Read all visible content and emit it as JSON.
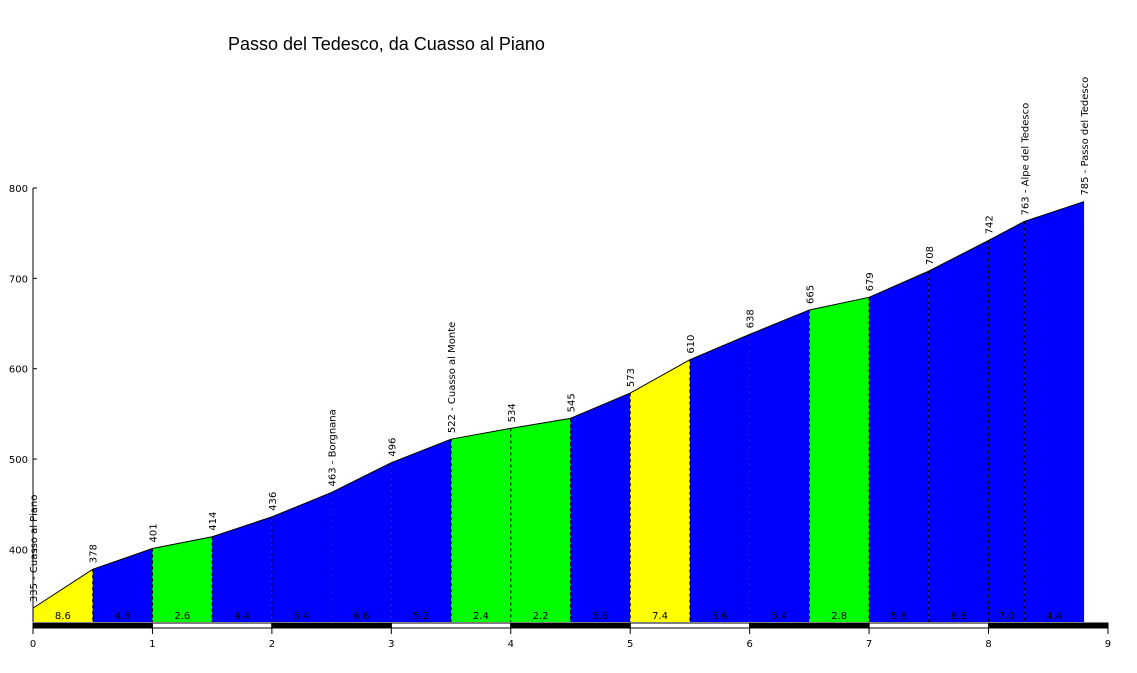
{
  "chart_data": {
    "type": "area",
    "title": "Passo del Tedesco, da Cuasso al Piano",
    "xlabel": "",
    "ylabel": "",
    "xlim": [
      0,
      9
    ],
    "ylim": [
      320,
      800
    ],
    "x_ticks": [
      "0",
      "1",
      "2",
      "3",
      "4",
      "5",
      "6",
      "7",
      "8",
      "9"
    ],
    "y_ticks": [
      "400",
      "500",
      "600",
      "700",
      "800"
    ],
    "points": [
      {
        "x": 0.0,
        "y": 335,
        "label": "335 - Cuasso al Piano"
      },
      {
        "x": 0.5,
        "y": 378,
        "label": "378"
      },
      {
        "x": 1.0,
        "y": 401,
        "label": "401"
      },
      {
        "x": 1.5,
        "y": 414,
        "label": "414"
      },
      {
        "x": 2.0,
        "y": 436,
        "label": "436"
      },
      {
        "x": 2.5,
        "y": 463,
        "label": "463 - Borgnana"
      },
      {
        "x": 3.0,
        "y": 496,
        "label": "496"
      },
      {
        "x": 3.5,
        "y": 522,
        "label": "522 - Cuasso al Monte"
      },
      {
        "x": 4.0,
        "y": 534,
        "label": "534"
      },
      {
        "x": 4.5,
        "y": 545,
        "label": "545"
      },
      {
        "x": 5.0,
        "y": 573,
        "label": "573"
      },
      {
        "x": 5.5,
        "y": 610,
        "label": "610"
      },
      {
        "x": 6.0,
        "y": 638,
        "label": "638"
      },
      {
        "x": 6.5,
        "y": 665,
        "label": "665"
      },
      {
        "x": 7.0,
        "y": 679,
        "label": "679"
      },
      {
        "x": 7.5,
        "y": 708,
        "label": "708"
      },
      {
        "x": 8.0,
        "y": 742,
        "label": "742"
      },
      {
        "x": 8.3,
        "y": 763,
        "label": "763 - Alpe del Tedesco"
      },
      {
        "x": 8.8,
        "y": 785,
        "label": "785 - Passo del Tedesco"
      }
    ],
    "segments": [
      {
        "gradient": "8.6",
        "color": "#ffff00"
      },
      {
        "gradient": "4.6",
        "color": "#0000ff"
      },
      {
        "gradient": "2.6",
        "color": "#00ff00"
      },
      {
        "gradient": "4.4",
        "color": "#0000ff"
      },
      {
        "gradient": "5.4",
        "color": "#0000ff"
      },
      {
        "gradient": "6.6",
        "color": "#0000ff"
      },
      {
        "gradient": "5.2",
        "color": "#0000ff"
      },
      {
        "gradient": "2.4",
        "color": "#00ff00"
      },
      {
        "gradient": "2.2",
        "color": "#00ff00"
      },
      {
        "gradient": "5.6",
        "color": "#0000ff"
      },
      {
        "gradient": "7.4",
        "color": "#ffff00"
      },
      {
        "gradient": "5.6",
        "color": "#0000ff"
      },
      {
        "gradient": "5.4",
        "color": "#0000ff"
      },
      {
        "gradient": "2.8",
        "color": "#00ff00"
      },
      {
        "gradient": "5.8",
        "color": "#0000ff"
      },
      {
        "gradient": "6.8",
        "color": "#0000ff"
      },
      {
        "gradient": "7.0",
        "color": "#0000ff"
      },
      {
        "gradient": "4.4",
        "color": "#0000ff"
      }
    ],
    "grid": false,
    "legend": "none"
  }
}
